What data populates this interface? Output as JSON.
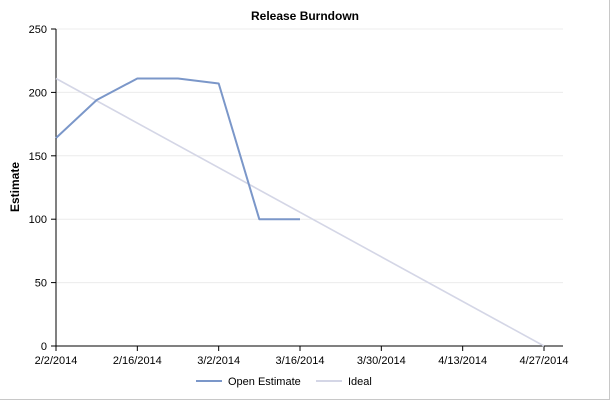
{
  "chart_data": {
    "type": "line",
    "title": "Release Burndown",
    "xlabel": "",
    "ylabel": "Estimate",
    "x_ticks": [
      "2/2/2014",
      "2/16/2014",
      "3/2/2014",
      "3/16/2014",
      "3/30/2014",
      "4/13/2014",
      "4/27/2014"
    ],
    "xlim": [
      "2/2/2014",
      "4/27/2014"
    ],
    "ylim": [
      0,
      250
    ],
    "y_ticks": [
      0,
      50,
      100,
      150,
      200,
      250
    ],
    "grid": true,
    "legend_placement": "bottom-center",
    "series": [
      {
        "name": "Open Estimate",
        "color": "#7b97c9",
        "points": [
          {
            "x": "2/2/2014",
            "y": 164
          },
          {
            "x": "2/9/2014",
            "y": 194
          },
          {
            "x": "2/16/2014",
            "y": 211
          },
          {
            "x": "2/23/2014",
            "y": 211
          },
          {
            "x": "3/2/2014",
            "y": 207
          },
          {
            "x": "3/9/2014",
            "y": 100
          },
          {
            "x": "3/16/2014",
            "y": 100
          }
        ]
      },
      {
        "name": "Ideal",
        "color": "#d4d6e6",
        "points": [
          {
            "x": "2/2/2014",
            "y": 211
          },
          {
            "x": "4/27/2014",
            "y": 0
          }
        ]
      }
    ]
  }
}
